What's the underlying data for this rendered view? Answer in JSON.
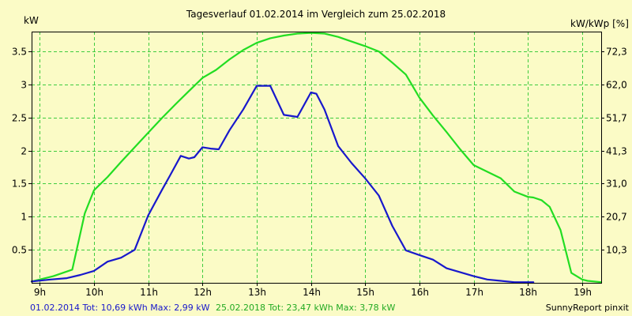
{
  "chart_data": {
    "type": "line",
    "title": "Tagesverlauf 01.02.2014 im Vergleich zum 25.02.2018",
    "ylabel_left": "kW",
    "ylabel_right": "kW/kWp [%]",
    "xlim": [
      8.85,
      19.35
    ],
    "ylim": [
      0,
      3.8
    ],
    "x_ticks": [
      9,
      10,
      11,
      12,
      13,
      14,
      15,
      16,
      17,
      18,
      19
    ],
    "x_tick_labels": [
      "9h",
      "10h",
      "11h",
      "12h",
      "13h",
      "14h",
      "15h",
      "16h",
      "17h",
      "18h",
      "19h"
    ],
    "y_ticks": [
      0.5,
      1,
      1.5,
      2,
      2.5,
      3,
      3.5
    ],
    "y_tick_labels": [
      "0.5",
      "1",
      "1.5",
      "2",
      "2.5",
      "3",
      "3.5"
    ],
    "y2_ticks": [
      0.5,
      1.0,
      1.5,
      2.0,
      2.5,
      3.0,
      3.5
    ],
    "y2_tick_labels": [
      "10,3",
      "20,7",
      "31,0",
      "41,3",
      "51,7",
      "62,0",
      "72,3"
    ],
    "grid": true,
    "background_color": "#fbfbc6",
    "grid_color": "#3ecb3e",
    "series": [
      {
        "name": "25.02.2018",
        "color": "#22dd22",
        "x": [
          8.85,
          9.0,
          9.25,
          9.6,
          9.83,
          10.0,
          10.25,
          10.5,
          10.75,
          11.0,
          11.25,
          11.5,
          11.75,
          12.0,
          12.25,
          12.5,
          12.75,
          13.0,
          13.25,
          13.5,
          13.75,
          14.0,
          14.25,
          14.5,
          14.75,
          15.0,
          15.25,
          15.5,
          15.75,
          16.0,
          16.25,
          16.5,
          16.75,
          17.0,
          17.25,
          17.5,
          17.75,
          18.0,
          18.1,
          18.25,
          18.4,
          18.6,
          18.8,
          19.0,
          19.1,
          19.35
        ],
        "y": [
          0.02,
          0.05,
          0.1,
          0.2,
          1.05,
          1.4,
          1.6,
          1.83,
          2.05,
          2.27,
          2.49,
          2.7,
          2.9,
          3.1,
          3.22,
          3.38,
          3.52,
          3.63,
          3.7,
          3.74,
          3.77,
          3.78,
          3.77,
          3.72,
          3.65,
          3.58,
          3.5,
          3.33,
          3.15,
          2.8,
          2.53,
          2.28,
          2.02,
          1.78,
          1.68,
          1.58,
          1.38,
          1.3,
          1.29,
          1.25,
          1.15,
          0.8,
          0.15,
          0.05,
          0.03,
          0.01
        ]
      },
      {
        "name": "01.02.2014",
        "color": "#1818cc",
        "x": [
          8.85,
          9.2,
          9.5,
          9.75,
          10.0,
          10.25,
          10.5,
          10.75,
          11.0,
          11.25,
          11.4,
          11.6,
          11.75,
          11.85,
          12.0,
          12.15,
          12.3,
          12.5,
          12.75,
          13.0,
          13.1,
          13.25,
          13.5,
          13.75,
          14.0,
          14.1,
          14.25,
          14.5,
          14.75,
          15.0,
          15.25,
          15.5,
          15.75,
          16.0,
          16.25,
          16.5,
          16.75,
          17.0,
          17.25,
          17.5,
          17.75,
          18.0,
          18.1
        ],
        "y": [
          0.02,
          0.05,
          0.07,
          0.12,
          0.18,
          0.32,
          0.38,
          0.5,
          1.02,
          1.4,
          1.62,
          1.92,
          1.88,
          1.9,
          2.05,
          2.03,
          2.02,
          2.31,
          2.62,
          2.98,
          2.98,
          2.98,
          2.54,
          2.51,
          2.88,
          2.86,
          2.62,
          2.07,
          1.81,
          1.58,
          1.32,
          0.86,
          0.49,
          0.42,
          0.35,
          0.22,
          0.16,
          0.1,
          0.05,
          0.03,
          0.01,
          0.01,
          0.01
        ]
      }
    ]
  },
  "footer": {
    "left_stats_blue": "01.02.2014 Tot: 10,69 kWh Max: 2,99 kW",
    "left_stats_green": "25.02.2018 Tot: 23,47 kWh Max: 3,78 kW",
    "credit": "SunnyReport pinxit",
    "blue_color": "#1818cc",
    "green_color": "#22aa22"
  }
}
